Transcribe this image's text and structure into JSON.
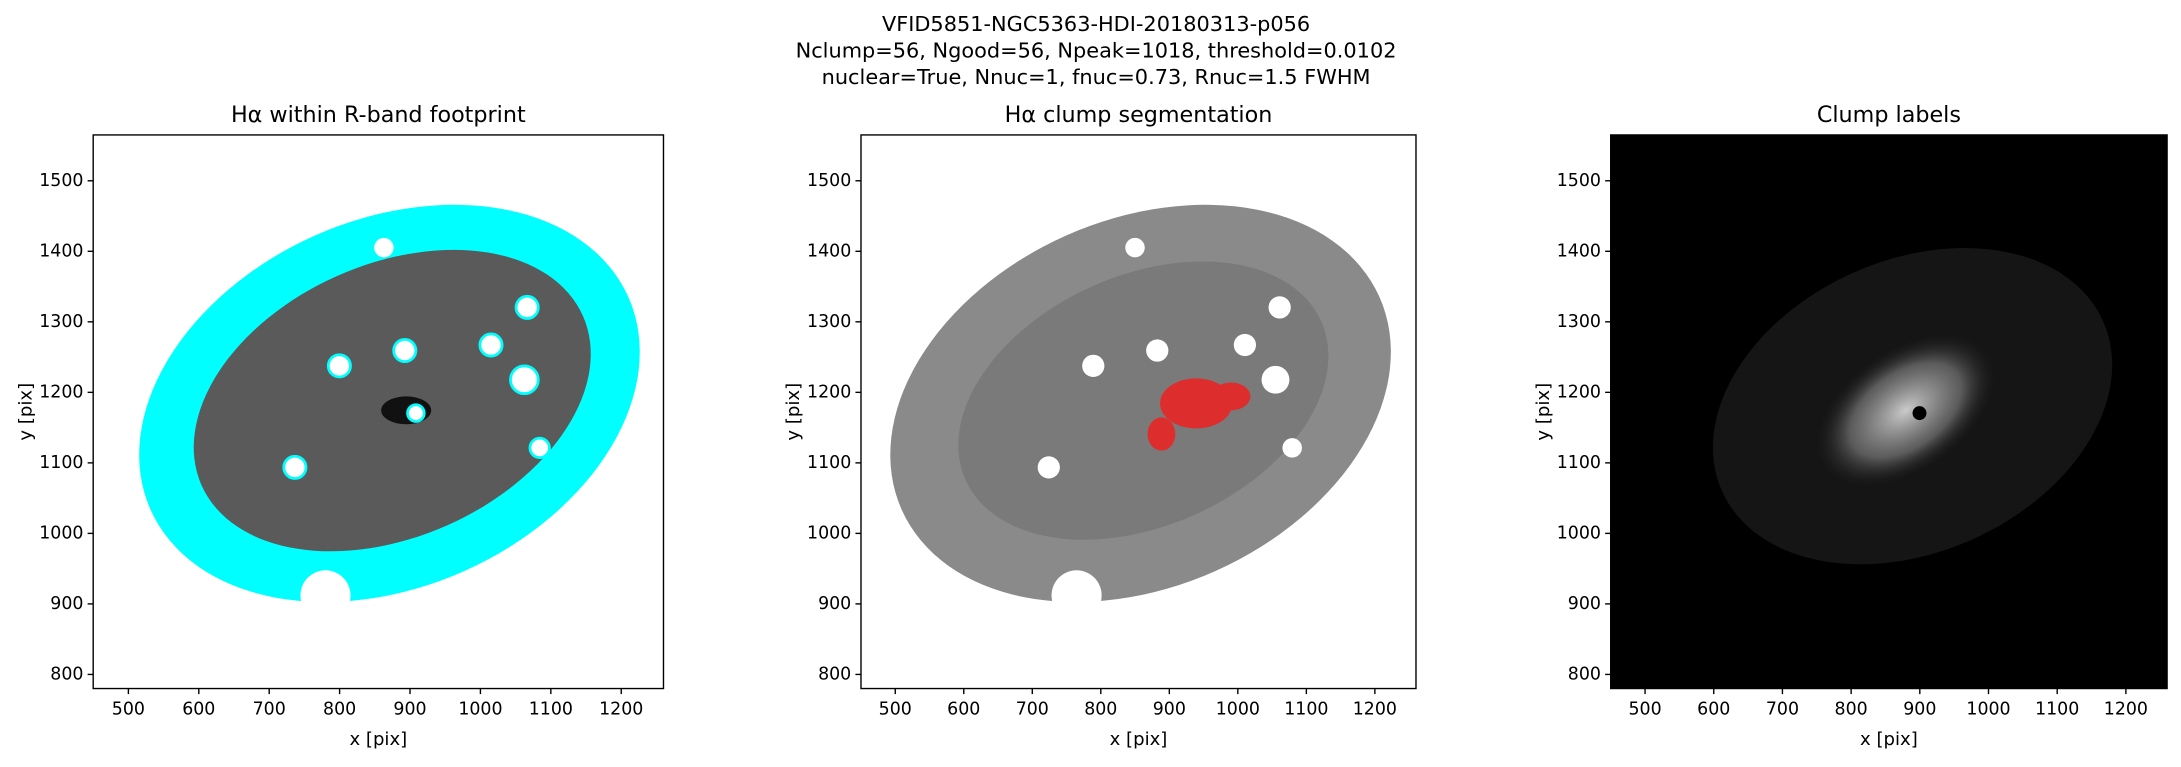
{
  "suptitle": [
    "VFID5851-NGC5363-HDI-20180313-p056",
    "Nclump=56, Ngood=56, Npeak=1018, threshold=0.0102",
    "nuclear=True, Nnuc=1, fnuc=0.73, Rnuc=1.5 FWHM"
  ],
  "chart_data": [
    {
      "type": "image",
      "title": "Hα within R-band footprint",
      "xlabel": "x [pix]",
      "ylabel": "y [pix]",
      "xlim": [
        450,
        1260
      ],
      "ylim": [
        780,
        1565
      ],
      "xticks": [
        500,
        600,
        700,
        800,
        900,
        1000,
        1100,
        1200
      ],
      "yticks": [
        800,
        900,
        1000,
        1100,
        1200,
        1300,
        1400,
        1500
      ]
    },
    {
      "type": "image",
      "title": "Hα clump segmentation",
      "xlabel": "x [pix]",
      "ylabel": "y [pix]",
      "xlim": [
        450,
        1260
      ],
      "ylim": [
        780,
        1565
      ],
      "xticks": [
        500,
        600,
        700,
        800,
        900,
        1000,
        1100,
        1200
      ],
      "yticks": [
        800,
        900,
        1000,
        1100,
        1200,
        1300,
        1400,
        1500
      ]
    },
    {
      "type": "image",
      "title": "Clump labels",
      "xlabel": "x [pix]",
      "ylabel": "y [pix]",
      "xlim": [
        450,
        1260
      ],
      "ylim": [
        780,
        1565
      ],
      "xticks": [
        500,
        600,
        700,
        800,
        900,
        1000,
        1100,
        1200
      ],
      "yticks": [
        800,
        900,
        1000,
        1100,
        1200,
        1300,
        1400,
        1500
      ]
    }
  ]
}
